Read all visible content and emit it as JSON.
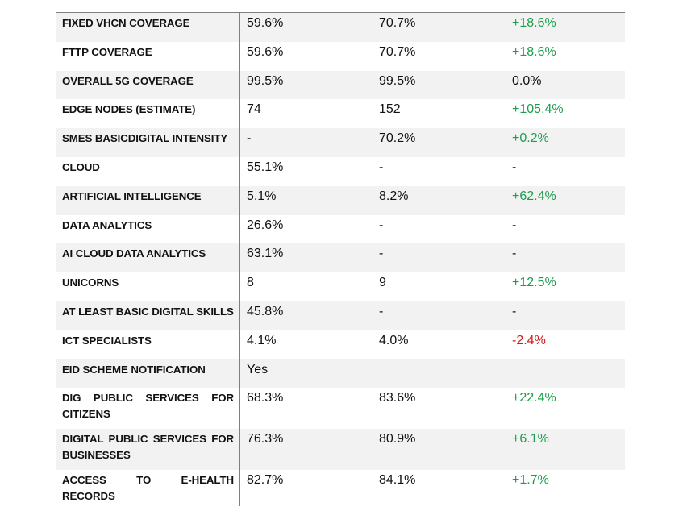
{
  "table": {
    "positive_color": "#1a9e4b",
    "negative_color": "#d11a1a",
    "rows": [
      [
        "FIXED VHCN COVERAGE",
        "59.6%",
        "70.7%",
        "+18.6%"
      ],
      [
        "FTTP COVERAGE",
        "59.6%",
        "70.7%",
        "+18.6%"
      ],
      [
        "OVERALL 5G COVERAGE",
        "99.5%",
        "99.5%",
        "0.0%"
      ],
      [
        "EDGE NODES (ESTIMATE)",
        "74",
        "152",
        "+105.4%"
      ],
      [
        "SMES BASICDIGITAL INTENSITY",
        "-",
        "70.2%",
        "+0.2%"
      ],
      [
        "CLOUD",
        "55.1%",
        "-",
        "-"
      ],
      [
        "ARTIFICIAL INTELLIGENCE",
        "5.1%",
        "8.2%",
        "+62.4%"
      ],
      [
        "DATA ANALYTICS",
        "26.6%",
        "-",
        "-"
      ],
      [
        "AI CLOUD DATA ANALYTICS",
        "63.1%",
        "-",
        "-"
      ],
      [
        "UNICORNS",
        "8",
        "9",
        "+12.5%"
      ],
      [
        "AT LEAST BASIC DIGITAL SKILLS",
        "45.8%",
        "-",
        "-"
      ],
      [
        "ICT SPECIALISTS",
        "4.1%",
        "4.0%",
        "-2.4%"
      ],
      [
        "EID SCHEME NOTIFICATION",
        "Yes"
      ],
      [
        "DIG PUBLIC SERVICES FOR CITIZENS",
        "68.3%",
        "83.6%",
        "+22.4%"
      ],
      [
        "DIGITAL PUBLIC SERVICES FOR BUSINESSES",
        "76.3%",
        "80.9%",
        "+6.1%"
      ],
      [
        "ACCESS TO E-HEALTH RECORDS",
        "82.7%",
        "84.1%",
        "+1.7%"
      ]
    ]
  }
}
